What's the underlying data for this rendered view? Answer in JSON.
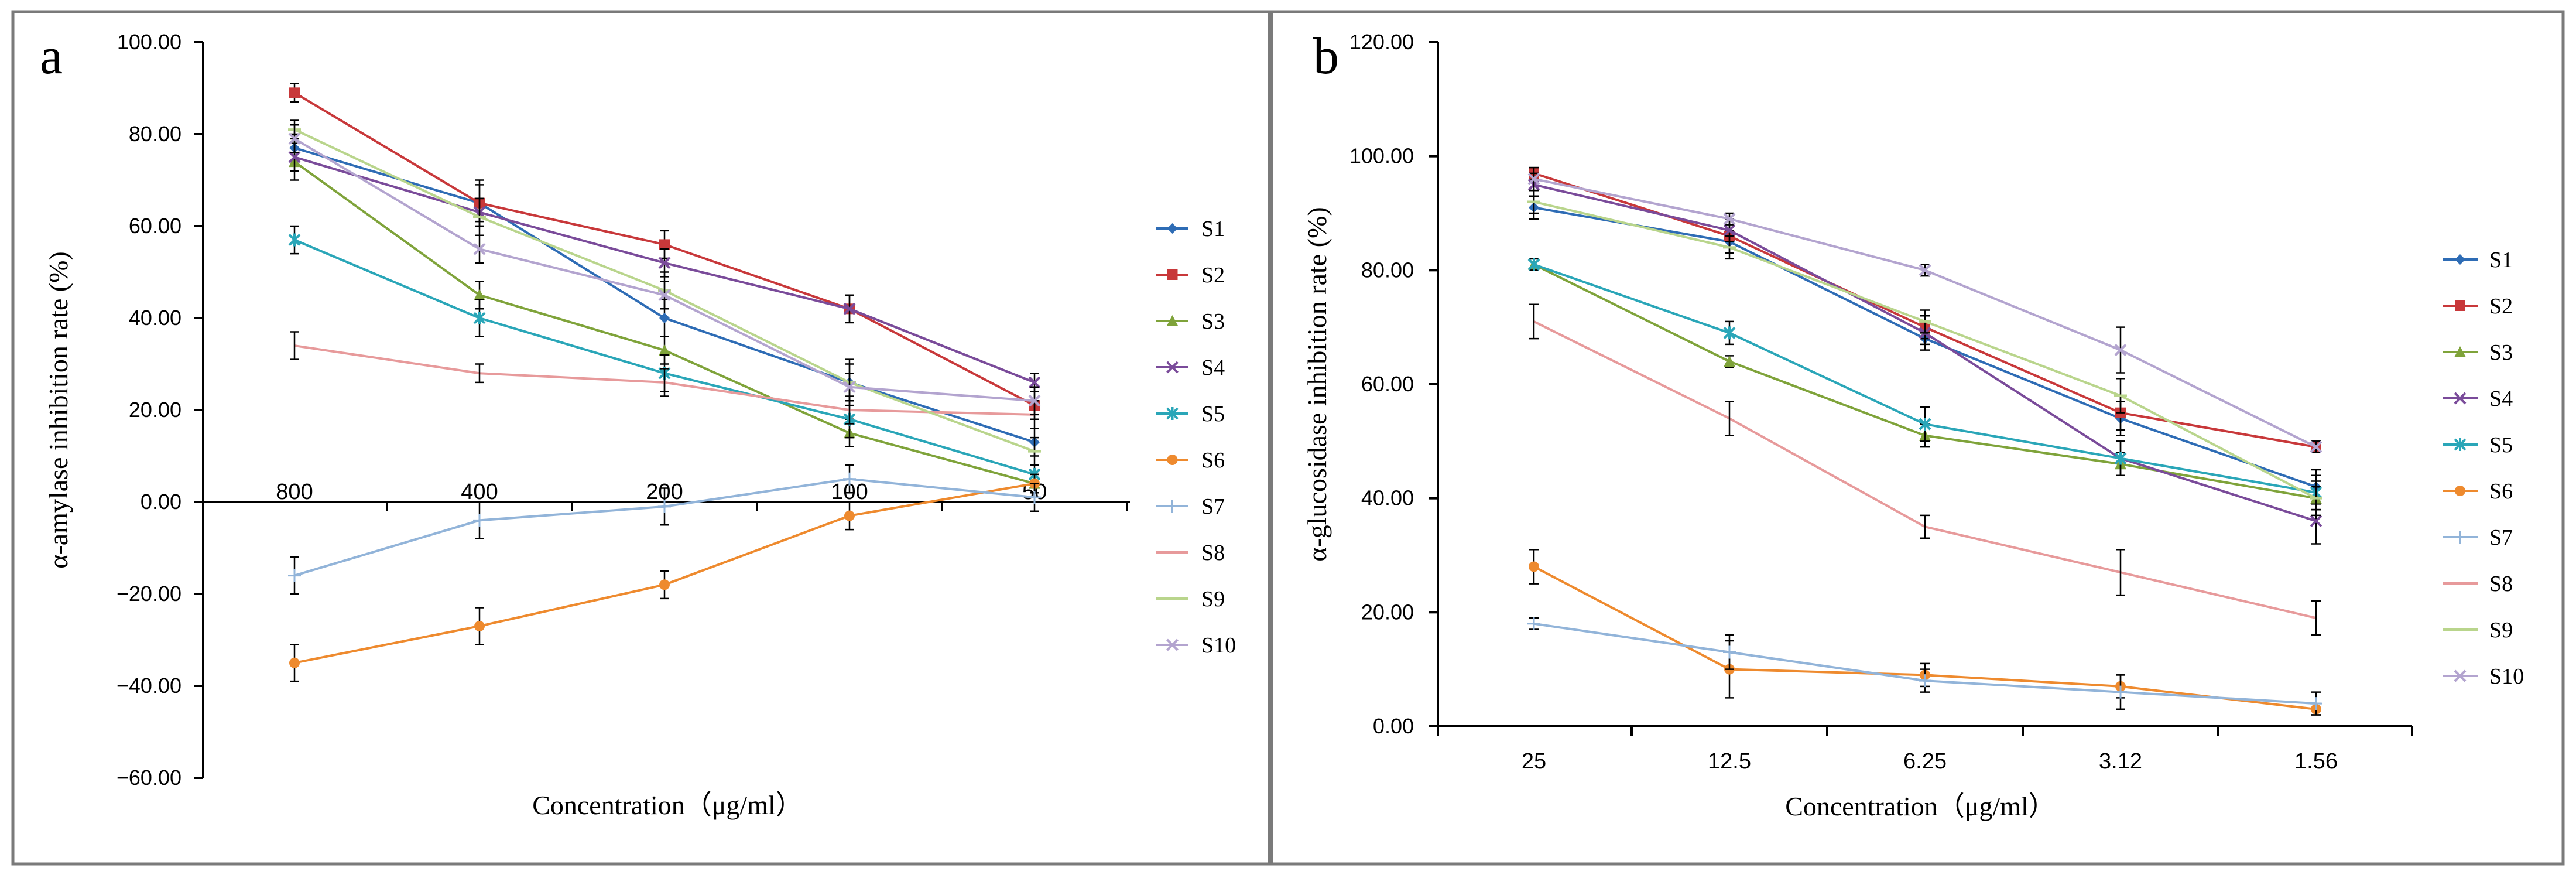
{
  "figure": {
    "colors": {
      "S1": "#2e6cb5",
      "S2": "#c8383a",
      "S3": "#7fa33a",
      "S4": "#7a4b9a",
      "S5": "#2aa6b8",
      "S6": "#ee8a2e",
      "S7": "#92b4d9",
      "S8": "#e79a9b",
      "S9": "#b9d58c",
      "S10": "#b3a4cf"
    }
  },
  "chart_data": [
    {
      "panel": "a",
      "type": "line",
      "ylabel": "α-amylase inhibition rate (%)",
      "xlabel": "Concentration（μg/ml）",
      "categories": [
        "800",
        "400",
        "200",
        "100",
        "50"
      ],
      "ylim": [
        -60,
        100
      ],
      "ytick_step": 20,
      "yticks": [
        "100.00",
        "80.00",
        "60.00",
        "40.00",
        "20.00",
        "0.00",
        "−20.00",
        "−40.00",
        "−60.00"
      ],
      "legend_position": "right",
      "series": [
        {
          "name": "S1",
          "values": [
            77,
            65,
            40,
            26,
            13
          ],
          "errors": [
            3,
            4,
            4,
            5,
            3
          ]
        },
        {
          "name": "S2",
          "values": [
            89,
            65,
            56,
            42,
            21
          ],
          "errors": [
            2,
            5,
            3,
            3,
            3
          ]
        },
        {
          "name": "S3",
          "values": [
            74,
            45,
            33,
            15,
            4
          ],
          "errors": [
            4,
            3,
            3,
            3,
            2
          ]
        },
        {
          "name": "S4",
          "values": [
            75,
            63,
            52,
            42,
            26
          ],
          "errors": [
            3,
            3,
            3,
            3,
            2
          ]
        },
        {
          "name": "S5",
          "values": [
            57,
            40,
            28,
            18,
            6
          ],
          "errors": [
            3,
            4,
            4,
            4,
            2
          ]
        },
        {
          "name": "S6",
          "values": [
            -35,
            -27,
            -18,
            -3,
            4
          ],
          "errors": [
            4,
            4,
            3,
            3,
            2
          ]
        },
        {
          "name": "S7",
          "values": [
            -16,
            -4,
            -1,
            5,
            1
          ],
          "errors": [
            4,
            4,
            4,
            3,
            3
          ]
        },
        {
          "name": "S8",
          "values": [
            34,
            28,
            26,
            20,
            19
          ],
          "errors": [
            3,
            2,
            3,
            3,
            3
          ]
        },
        {
          "name": "S9",
          "values": [
            81,
            62,
            46,
            26,
            11
          ],
          "errors": [
            2,
            4,
            4,
            4,
            3
          ]
        },
        {
          "name": "S10",
          "values": [
            79,
            55,
            45,
            25,
            22
          ],
          "errors": [
            3,
            3,
            3,
            3,
            3
          ]
        }
      ]
    },
    {
      "panel": "b",
      "type": "line",
      "ylabel": "α-glucosidase inhibition rate (%)",
      "xlabel": "Concentration（μg/ml）",
      "categories": [
        "25",
        "12.5",
        "6.25",
        "3.12",
        "1.56"
      ],
      "ylim": [
        0,
        120
      ],
      "ytick_step": 20,
      "yticks": [
        "120.00",
        "100.00",
        "80.00",
        "60.00",
        "40.00",
        "20.00",
        "0.00"
      ],
      "legend_position": "right",
      "series": [
        {
          "name": "S1",
          "values": [
            91,
            85,
            68,
            54,
            42
          ],
          "errors": [
            2,
            2,
            2,
            3,
            3
          ]
        },
        {
          "name": "S2",
          "values": [
            97,
            86,
            70,
            55,
            49
          ],
          "errors": [
            1,
            2,
            2,
            3,
            1
          ]
        },
        {
          "name": "S3",
          "values": [
            81,
            64,
            51,
            46,
            40
          ],
          "errors": [
            1,
            1,
            2,
            2,
            2
          ]
        },
        {
          "name": "S4",
          "values": [
            95,
            87,
            69,
            47,
            36
          ],
          "errors": [
            2,
            2,
            2,
            3,
            4
          ]
        },
        {
          "name": "S5",
          "values": [
            81,
            69,
            53,
            47,
            41
          ],
          "errors": [
            1,
            2,
            3,
            3,
            3
          ]
        },
        {
          "name": "S6",
          "values": [
            28,
            10,
            9,
            7,
            3
          ],
          "errors": [
            3,
            5,
            2,
            2,
            1
          ]
        },
        {
          "name": "S7",
          "values": [
            18,
            13,
            8,
            6,
            4
          ],
          "errors": [
            1,
            3,
            2,
            3,
            2
          ]
        },
        {
          "name": "S8",
          "values": [
            71,
            54,
            35,
            27,
            19
          ],
          "errors": [
            3,
            3,
            2,
            4,
            3
          ]
        },
        {
          "name": "S9",
          "values": [
            92,
            84,
            71,
            58,
            40
          ],
          "errors": [
            2,
            2,
            2,
            3,
            3
          ]
        },
        {
          "name": "S10",
          "values": [
            96,
            89,
            80,
            66,
            49
          ],
          "errors": [
            2,
            1,
            1,
            4,
            1
          ]
        }
      ]
    }
  ]
}
